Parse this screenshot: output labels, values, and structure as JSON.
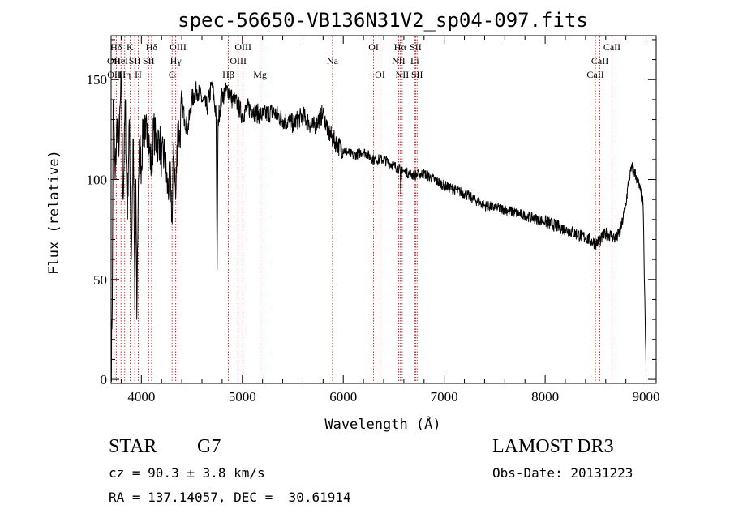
{
  "chart_data": {
    "type": "line",
    "title": "spec-56650-VB136N31V2_sp04-097.fits",
    "xlabel": "Wavelength (Å)",
    "ylabel": "Flux (relative)",
    "xlim": [
      3700,
      9100
    ],
    "ylim": [
      -2,
      172
    ],
    "xticks": [
      4000,
      5000,
      6000,
      7000,
      8000,
      9000
    ],
    "yticks": [
      0,
      50,
      100,
      150
    ],
    "series": [
      {
        "name": "flux",
        "x": [
          3700,
          3712,
          3720,
          3740,
          3760,
          3780,
          3800,
          3820,
          3840,
          3860,
          3880,
          3900,
          3920,
          3935,
          3945,
          3955,
          3968,
          3980,
          4000,
          4020,
          4040,
          4060,
          4080,
          4101,
          4120,
          4150,
          4180,
          4200,
          4230,
          4260,
          4290,
          4305,
          4320,
          4340,
          4360,
          4380,
          4400,
          4430,
          4460,
          4500,
          4550,
          4600,
          4650,
          4700,
          4740,
          4750,
          4760,
          4800,
          4861,
          4900,
          4950,
          5000,
          5050,
          5100,
          5150,
          5200,
          5300,
          5400,
          5500,
          5600,
          5700,
          5800,
          5850,
          5900,
          5950,
          6000,
          6100,
          6200,
          6300,
          6400,
          6500,
          6563,
          6570,
          6580,
          6600,
          6700,
          6800,
          6900,
          7000,
          7200,
          7400,
          7600,
          7800,
          8000,
          8200,
          8400,
          8500,
          8550,
          8600,
          8662,
          8700,
          8750,
          8800,
          8830,
          8860,
          8900,
          8940,
          8970,
          9000
        ],
        "y": [
          0,
          40,
          140,
          100,
          130,
          118,
          150,
          90,
          140,
          80,
          130,
          60,
          120,
          35,
          100,
          30,
          90,
          120,
          105,
          130,
          120,
          128,
          115,
          105,
          125,
          118,
          120,
          110,
          112,
          95,
          100,
          78,
          118,
          90,
          128,
          120,
          138,
          130,
          125,
          140,
          145,
          140,
          136,
          148,
          132,
          55,
          130,
          142,
          145,
          140,
          138,
          132,
          136,
          135,
          133,
          132,
          134,
          130,
          128,
          132,
          126,
          133,
          124,
          120,
          117,
          115,
          112,
          114,
          110,
          110,
          107,
          105,
          93,
          106,
          104,
          102,
          103,
          100,
          97,
          93,
          87,
          85,
          82,
          79,
          75,
          71,
          68,
          70,
          73,
          72,
          70,
          75,
          88,
          100,
          106,
          102,
          95,
          88,
          4
        ]
      }
    ],
    "spectral_lines": [
      {
        "label": "Hδ",
        "x": 3751,
        "row": 1
      },
      {
        "label": "OII",
        "x": 3727,
        "row": 2
      },
      {
        "label": "OII",
        "x": 3729,
        "row": 3
      },
      {
        "label": "HeI",
        "x": 3798,
        "row": 2
      },
      {
        "label": "Hη",
        "x": 3835,
        "row": 3
      },
      {
        "label": "K",
        "x": 3888,
        "row": 1
      },
      {
        "label": "SII",
        "x": 3934,
        "row": 2
      },
      {
        "label": "H",
        "x": 3969,
        "row": 3
      },
      {
        "label": "Hδ",
        "x": 4101,
        "row": 1
      },
      {
        "label": "SII",
        "x": 4072,
        "row": 2
      },
      {
        "label": "OIII",
        "x": 4363,
        "row": 1
      },
      {
        "label": "Hγ",
        "x": 4340,
        "row": 2
      },
      {
        "label": "G",
        "x": 4304,
        "row": 3
      },
      {
        "label": "Hβ",
        "x": 4861,
        "row": 3
      },
      {
        "label": "OIII",
        "x": 5007,
        "row": 1
      },
      {
        "label": "OIII",
        "x": 4959,
        "row": 2
      },
      {
        "label": "Mg",
        "x": 5175,
        "row": 3
      },
      {
        "label": "Na",
        "x": 5893,
        "row": 2
      },
      {
        "label": "OI",
        "x": 6300,
        "row": 1
      },
      {
        "label": "OI",
        "x": 6364,
        "row": 3
      },
      {
        "label": "Hα",
        "x": 6563,
        "row": 1
      },
      {
        "label": "NII",
        "x": 6548,
        "row": 2
      },
      {
        "label": "NII",
        "x": 6584,
        "row": 3
      },
      {
        "label": "SII",
        "x": 6717,
        "row": 1
      },
      {
        "label": "Li",
        "x": 6708,
        "row": 2
      },
      {
        "label": "SII",
        "x": 6731,
        "row": 3
      },
      {
        "label": "CaII",
        "x": 8662,
        "row": 1
      },
      {
        "label": "CaII",
        "x": 8542,
        "row": 2
      },
      {
        "label": "CaII",
        "x": 8498,
        "row": 3
      }
    ]
  },
  "info": {
    "class_label": "STAR",
    "subclass": "G7",
    "survey": "LAMOST DR3",
    "cz_line": "cz = 90.3 ± 3.8 km/s",
    "obs_date_line": "Obs-Date: 20131223",
    "coords_line": "RA = 137.14057, DEC =  30.61914"
  },
  "colors": {
    "line_marker": "#cc0000",
    "spectrum": "#000000",
    "background": "#ffffff"
  }
}
